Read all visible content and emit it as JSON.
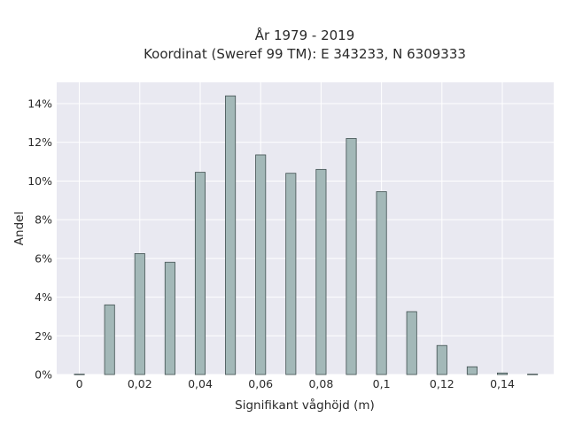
{
  "chart_data": {
    "type": "bar",
    "title": [
      "År 1979 - 2019",
      "Koordinat (Sweref 99 TM): E 343233, N 6309333"
    ],
    "xlabel": "Signifikant våghöjd (m)",
    "ylabel": "Andel",
    "x": [
      0,
      0.01,
      0.02,
      0.03,
      0.04,
      0.05,
      0.06,
      0.07,
      0.08,
      0.09,
      0.1,
      0.11,
      0.12,
      0.13,
      0.14,
      0.15
    ],
    "values": [
      0.02,
      3.6,
      6.25,
      5.8,
      10.45,
      14.4,
      11.35,
      10.4,
      10.6,
      12.2,
      9.45,
      3.25,
      1.5,
      0.4,
      0.08,
      0.02
    ],
    "xlim": [
      -0.0075,
      0.157
    ],
    "ylim": [
      0,
      15.1
    ],
    "xticks": [
      0,
      0.02,
      0.04,
      0.06,
      0.08,
      0.1,
      0.12,
      0.14
    ],
    "xtick_labels": [
      "0",
      "0,02",
      "0,04",
      "0,06",
      "0,08",
      "0,1",
      "0,12",
      "0,14"
    ],
    "yticks": [
      0,
      2,
      4,
      6,
      8,
      10,
      12,
      14
    ],
    "ytick_labels": [
      "0%",
      "2%",
      "4%",
      "6%",
      "8%",
      "10%",
      "12%",
      "14%"
    ],
    "bar_width": 0.0033,
    "grid": true,
    "colors": {
      "bar_fill": "#a3b8b8",
      "bar_edge": "#3f4f4f",
      "plot_background": "#e9e9f1",
      "grid": "#ffffff"
    }
  }
}
